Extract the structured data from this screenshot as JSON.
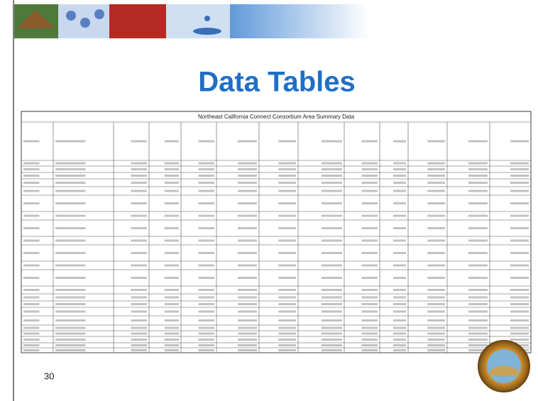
{
  "slide": {
    "title": "Data Tables",
    "table": {
      "caption": "Northeast California Connect Consortium Area Summary Data"
    },
    "page_number": "30"
  }
}
